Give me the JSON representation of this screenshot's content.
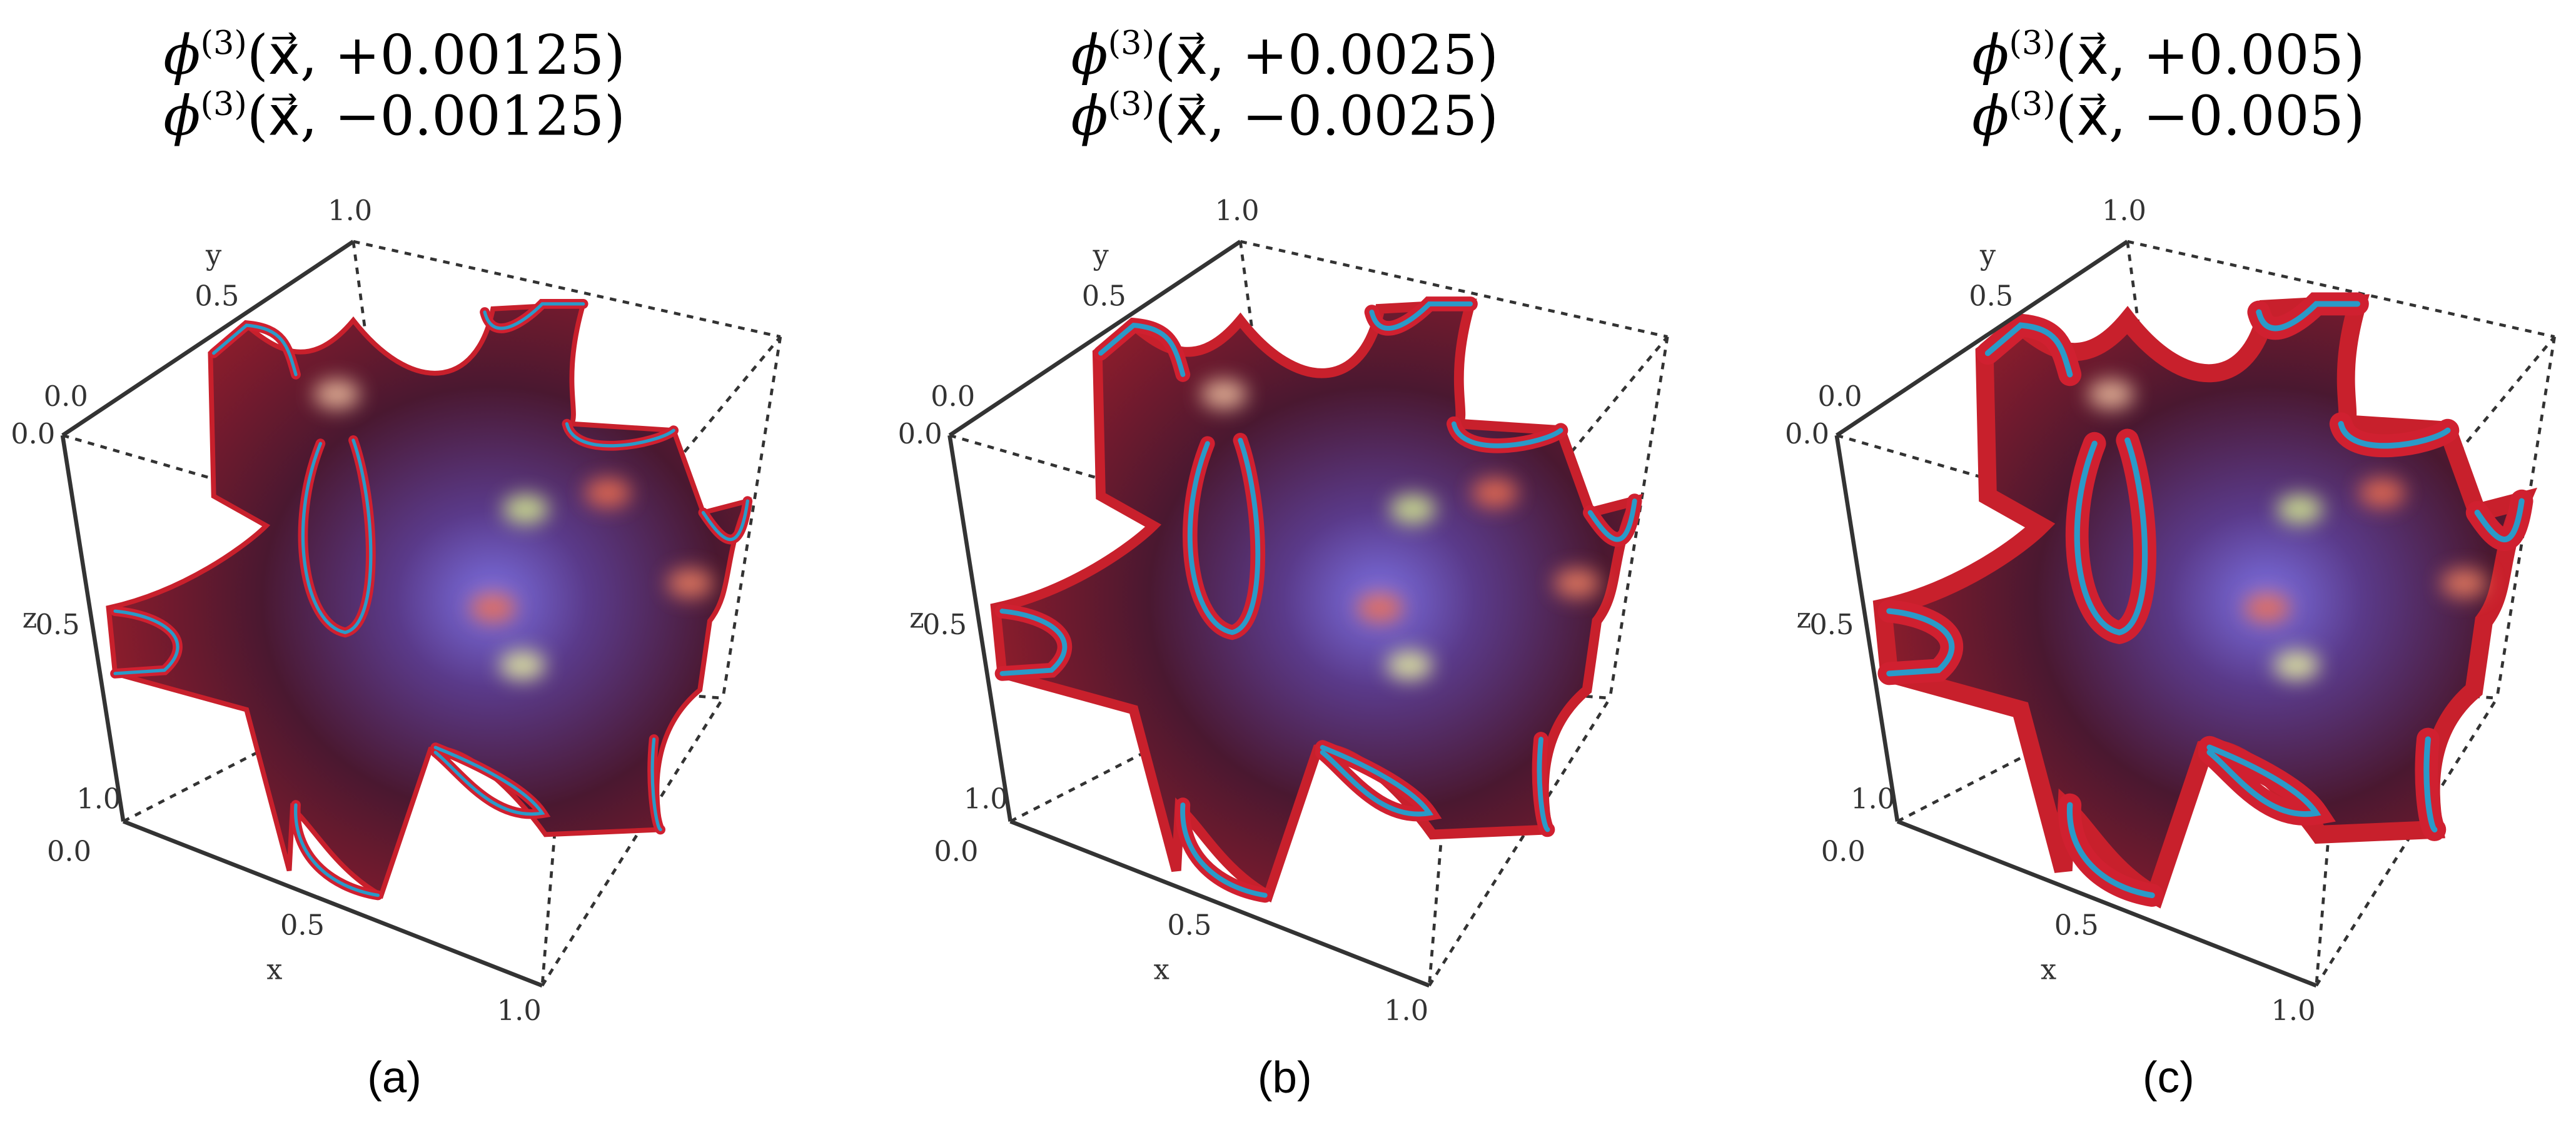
{
  "panels": [
    {
      "title": [
        {
          "symbol": "ϕ",
          "superscript": "(3)",
          "argument": "(x⃗, +0.00125)"
        },
        {
          "symbol": "ϕ",
          "superscript": "(3)",
          "argument": "(x⃗, −0.00125)"
        }
      ],
      "axes": {
        "x": {
          "label": "x",
          "ticks": [
            "0.0",
            "0.5",
            "1.0"
          ]
        },
        "y": {
          "label": "y",
          "ticks": [
            "0.0",
            "0.5",
            "1.0"
          ]
        },
        "z": {
          "label": "z",
          "ticks": [
            "0.0",
            "0.5",
            "1.0"
          ]
        }
      },
      "caption": "(a)"
    },
    {
      "title": [
        {
          "symbol": "ϕ",
          "superscript": "(3)",
          "argument": "(x⃗, +0.0025)"
        },
        {
          "symbol": "ϕ",
          "superscript": "(3)",
          "argument": "(x⃗, −0.0025)"
        }
      ],
      "axes": {
        "x": {
          "label": "x",
          "ticks": [
            "0.0",
            "0.5",
            "1.0"
          ]
        },
        "y": {
          "label": "y",
          "ticks": [
            "0.0",
            "0.5",
            "1.0"
          ]
        },
        "z": {
          "label": "z",
          "ticks": [
            "0.0",
            "0.5",
            "1.0"
          ]
        }
      },
      "caption": "(b)"
    },
    {
      "title": [
        {
          "symbol": "ϕ",
          "superscript": "(3)",
          "argument": "(x⃗, +0.005)"
        },
        {
          "symbol": "ϕ",
          "superscript": "(3)",
          "argument": "(x⃗, −0.005)"
        }
      ],
      "axes": {
        "x": {
          "label": "x",
          "ticks": [
            "0.0",
            "0.5",
            "1.0"
          ]
        },
        "y": {
          "label": "y",
          "ticks": [
            "0.0",
            "0.5",
            "1.0"
          ]
        },
        "z": {
          "label": "z",
          "ticks": [
            "0.0",
            "0.5",
            "1.0"
          ]
        }
      },
      "caption": "(c)"
    }
  ]
}
